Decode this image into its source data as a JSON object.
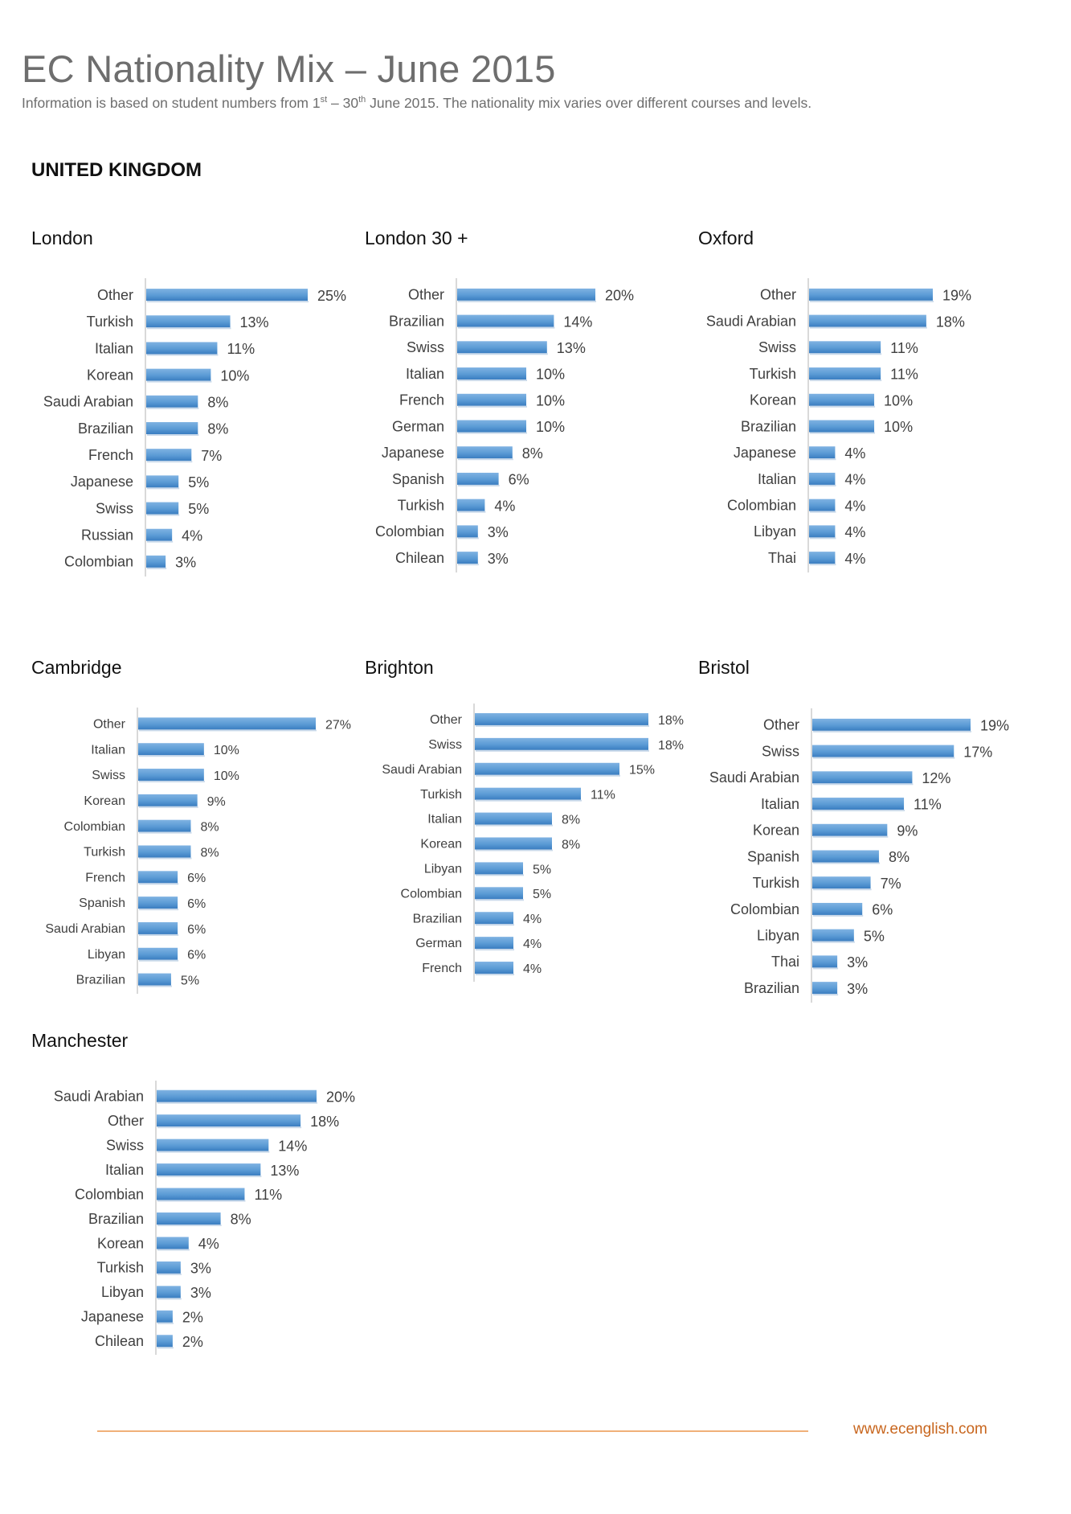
{
  "title": "EC Nationality Mix – June 2015",
  "subtitle": {
    "pre": "Information is based on student numbers from 1",
    "sup1": "st",
    "mid": " – 30",
    "sup2": "th",
    "post": " June 2015. The nationality mix varies over different courses and levels."
  },
  "region": "UNITED KINGDOM",
  "footer": {
    "url": "www.ecenglish.com"
  },
  "colors": {
    "bar": "#5b9bd5",
    "bar_dark": "#3a7dc0",
    "axis": "#d9d9d9",
    "footer_line": "#f0b079",
    "footer_url": "#c8661e"
  },
  "chart_data": [
    {
      "type": "bar",
      "title": "London",
      "categories": [
        "Other",
        "Turkish",
        "Italian",
        "Korean",
        "Saudi Arabian",
        "Brazilian",
        "French",
        "Japanese",
        "Swiss",
        "Russian",
        "Colombian"
      ],
      "values": [
        25,
        13,
        11,
        10,
        8,
        8,
        7,
        5,
        5,
        4,
        3
      ],
      "value_labels": [
        "25%",
        "13%",
        "11%",
        "10%",
        "8%",
        "8%",
        "7%",
        "5%",
        "5%",
        "4%",
        "3%"
      ]
    },
    {
      "type": "bar",
      "title": "London 30 +",
      "categories": [
        "Other",
        "Brazilian",
        "Swiss",
        "Italian",
        "French",
        "German",
        "Japanese",
        "Spanish",
        "Turkish",
        "Colombian",
        "Chilean"
      ],
      "values": [
        20,
        14,
        13,
        10,
        10,
        10,
        8,
        6,
        4,
        3,
        3
      ],
      "value_labels": [
        "20%",
        "14%",
        "13%",
        "10%",
        "10%",
        "10%",
        "8%",
        "6%",
        "4%",
        "3%",
        "3%"
      ]
    },
    {
      "type": "bar",
      "title": "Oxford",
      "categories": [
        "Other",
        "Saudi Arabian",
        "Swiss",
        "Turkish",
        "Korean",
        "Brazilian",
        "Japanese",
        "Italian",
        "Colombian",
        "Libyan",
        "Thai"
      ],
      "values": [
        19,
        18,
        11,
        11,
        10,
        10,
        4,
        4,
        4,
        4,
        4
      ],
      "value_labels": [
        "19%",
        "18%",
        "11%",
        "11%",
        "10%",
        "10%",
        "4%",
        "4%",
        "4%",
        "4%",
        "4%"
      ]
    },
    {
      "type": "bar",
      "title": "Cambridge",
      "categories": [
        "Other",
        "Italian",
        "Swiss",
        "Korean",
        "Colombian",
        "Turkish",
        "French",
        "Spanish",
        "Saudi Arabian",
        "Libyan",
        "Brazilian"
      ],
      "values": [
        27,
        10,
        10,
        9,
        8,
        8,
        6,
        6,
        6,
        6,
        5
      ],
      "value_labels": [
        "27%",
        "10%",
        "10%",
        "9%",
        "8%",
        "8%",
        "6%",
        "6%",
        "6%",
        "6%",
        "5%"
      ]
    },
    {
      "type": "bar",
      "title": "Brighton",
      "categories": [
        "Other",
        "Swiss",
        "Saudi Arabian",
        "Turkish",
        "Italian",
        "Korean",
        "Libyan",
        "Colombian",
        "Brazilian",
        "German",
        "French"
      ],
      "values": [
        18,
        18,
        15,
        11,
        8,
        8,
        5,
        5,
        4,
        4,
        4
      ],
      "value_labels": [
        "18%",
        "18%",
        "15%",
        "11%",
        "8%",
        "8%",
        "5%",
        "5%",
        "4%",
        "4%",
        "4%"
      ]
    },
    {
      "type": "bar",
      "title": "Bristol",
      "categories": [
        "Other",
        "Swiss",
        "Saudi Arabian",
        "Italian",
        "Korean",
        "Spanish",
        "Turkish",
        "Colombian",
        "Libyan",
        "Thai",
        "Brazilian"
      ],
      "values": [
        19,
        17,
        12,
        11,
        9,
        8,
        7,
        6,
        5,
        3,
        3
      ],
      "value_labels": [
        "19%",
        "17%",
        "12%",
        "11%",
        "9%",
        "8%",
        "7%",
        "6%",
        "5%",
        "3%",
        "3%"
      ]
    },
    {
      "type": "bar",
      "title": "Manchester",
      "categories": [
        "Saudi Arabian",
        "Other",
        "Swiss",
        "Italian",
        "Colombian",
        "Brazilian",
        "Korean",
        "Turkish",
        "Libyan",
        "Japanese",
        "Chilean"
      ],
      "values": [
        20,
        18,
        14,
        13,
        11,
        8,
        4,
        3,
        3,
        2,
        2
      ],
      "value_labels": [
        "20%",
        "18%",
        "14%",
        "13%",
        "11%",
        "8%",
        "4%",
        "3%",
        "3%",
        "2%",
        "2%"
      ]
    }
  ]
}
